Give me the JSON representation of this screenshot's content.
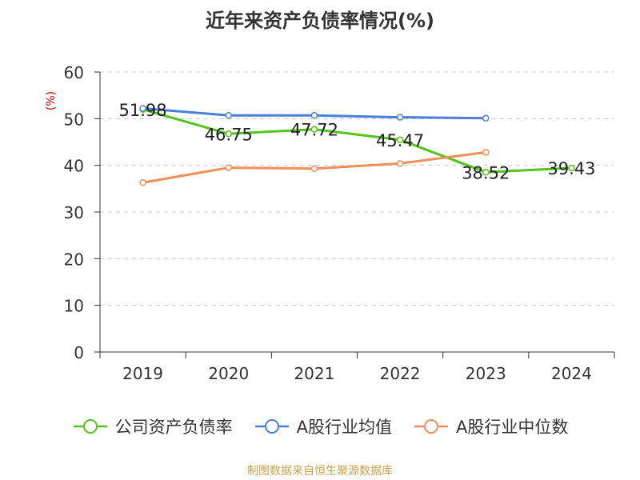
{
  "chart_data": {
    "type": "line",
    "title": "近年来资产负债率情况(%)",
    "ylabel": "(%)",
    "xlabel": "",
    "categories": [
      "2019",
      "2020",
      "2021",
      "2022",
      "2023",
      "2024"
    ],
    "ylim": [
      0,
      60
    ],
    "yticks": [
      0,
      10,
      20,
      30,
      40,
      50,
      60
    ],
    "grid": true,
    "legend_position": "bottom",
    "series": [
      {
        "name": "公司资产负债率",
        "color": "#52c41a",
        "values": [
          51.98,
          46.75,
          47.72,
          45.47,
          38.52,
          39.43
        ],
        "labels": [
          "51.98",
          "46.75",
          "47.72",
          "45.47",
          "38.52",
          "39.43"
        ]
      },
      {
        "name": "A股行业均值",
        "color": "#4a7fd9",
        "values": [
          52.2,
          50.7,
          50.7,
          50.3,
          50.1,
          null
        ]
      },
      {
        "name": "A股行业中位数",
        "color": "#f28e58",
        "values": [
          36.3,
          39.5,
          39.3,
          40.4,
          42.8,
          null
        ]
      }
    ]
  },
  "source": "制图数据来自恒生聚源数据库"
}
